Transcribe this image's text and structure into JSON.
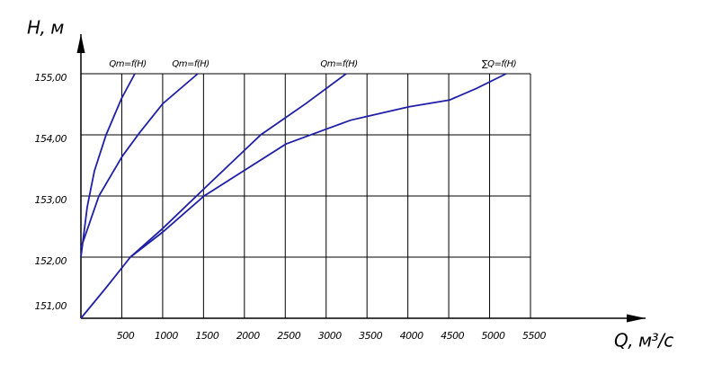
{
  "chart_data": {
    "type": "line",
    "x_label": "Q, м³/с",
    "y_label": "H, м",
    "xlim": [
      0,
      5500
    ],
    "ylim": [
      151,
      155
    ],
    "xticks": [
      500,
      1000,
      1500,
      2000,
      2500,
      3000,
      3500,
      4000,
      4500,
      5000,
      5500
    ],
    "yticks": [
      {
        "value": 151,
        "label": "151,00"
      },
      {
        "value": 152,
        "label": "152,00"
      },
      {
        "value": 153,
        "label": "153,00"
      },
      {
        "value": 154,
        "label": "154,00"
      },
      {
        "value": 155,
        "label": "155,00"
      }
    ],
    "grid": true,
    "series": [
      {
        "name": "Qm=f(H)",
        "color": "#1f1fa8",
        "x": [
          0,
          77,
          165,
          308,
          495,
          660
        ],
        "values": [
          152,
          152.82,
          153.41,
          154,
          154.59,
          155
        ]
      },
      {
        "name": "Qm=f(H)",
        "color": "#1f1fa8",
        "x": [
          0,
          220,
          506,
          715,
          1001,
          1430
        ],
        "values": [
          152.15,
          153,
          153.65,
          154.03,
          154.51,
          155
        ]
      },
      {
        "name": "Qm=f(H)",
        "color": "#1f1fa8",
        "x": [
          0,
          308,
          605,
          1001,
          1507,
          2200,
          2750,
          3245
        ],
        "values": [
          151,
          151.5,
          152,
          152.47,
          153.12,
          154,
          154.51,
          155
        ]
      },
      {
        "name": "∑Q=f(H)",
        "color": "#1f1fa8",
        "x": [
          605,
          1001,
          1507,
          2508,
          3014,
          3300,
          4015,
          4510,
          4840,
          5203
        ],
        "values": [
          152,
          152.41,
          153,
          153.85,
          154.1,
          154.24,
          154.46,
          154.57,
          154.76,
          155
        ]
      }
    ]
  }
}
